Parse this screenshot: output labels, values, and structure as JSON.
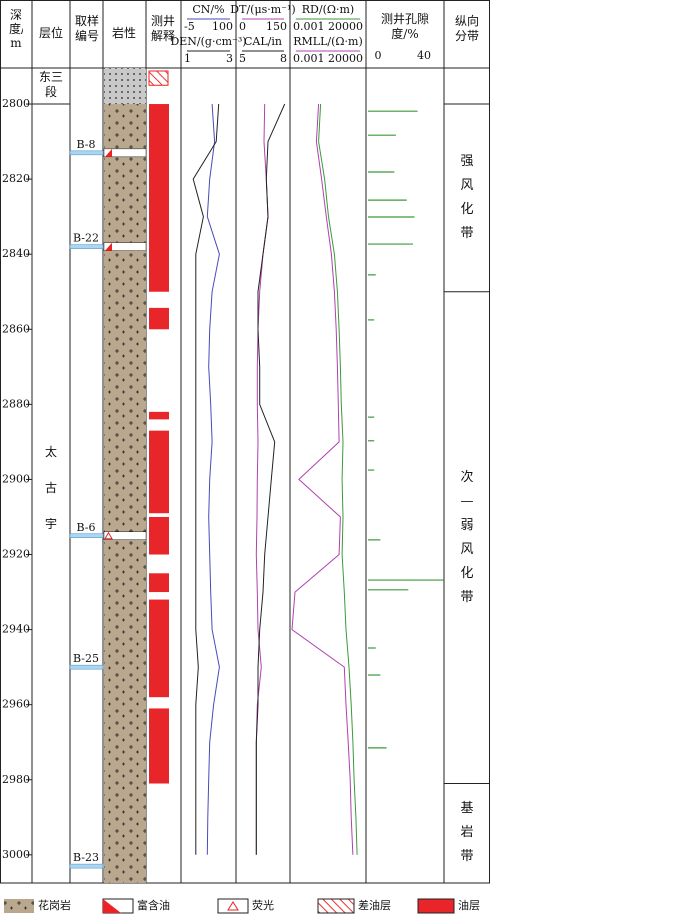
{
  "header": {
    "depth": "深度/m",
    "formation": "层位",
    "sample": "取样编号",
    "lithology": "岩性",
    "interpretation": "测井解释",
    "porosity": "测井孔隙度/%",
    "zone": "纵向分带"
  },
  "depth_axis": {
    "lim": [
      2790.4,
      3007.5
    ],
    "ticks": [
      2800,
      2820,
      2840,
      2860,
      2880,
      2900,
      2920,
      2940,
      2960,
      2980,
      3000
    ]
  },
  "formations": [
    {
      "name": "东三段",
      "top": 2790.4,
      "bottom": 2800
    },
    {
      "name": "太古宇",
      "top": 2800,
      "bottom": 3007.5
    }
  ],
  "lithology": {
    "top": 2790.4,
    "granite_top": 2800,
    "bottom": 3007.5
  },
  "samples": [
    {
      "label": "B-8",
      "depth": 2813,
      "show": "rich_oil"
    },
    {
      "label": "B-22",
      "depth": 2838,
      "show": "rich_oil"
    },
    {
      "label": "B-6",
      "depth": 2915,
      "show": "fluorescence"
    },
    {
      "label": "B-25",
      "depth": 2950
    },
    {
      "label": "B-23",
      "depth": 3003
    }
  ],
  "interpretation": {
    "poor_oil": [
      [
        2791.2,
        2795
      ]
    ],
    "oil": [
      [
        2800,
        2850
      ],
      [
        2854.3,
        2860
      ],
      [
        2882,
        2884
      ],
      [
        2887,
        2909
      ],
      [
        2910,
        2920
      ],
      [
        2925,
        2930
      ],
      [
        2932,
        2958
      ],
      [
        2961,
        2981
      ]
    ]
  },
  "tracks": [
    {
      "curves": [
        {
          "name": "CN/%",
          "color": "#4a4ab8",
          "scale": [
            -5,
            100
          ],
          "values": [
            55,
            60,
            50,
            45,
            70,
            55,
            50,
            48,
            52,
            55,
            50,
            48,
            50,
            52,
            55,
            70,
            58,
            50,
            48,
            46,
            45
          ]
        },
        {
          "name": "DEN/(g·cm⁻³)",
          "color": "#222222",
          "scale": [
            1,
            3
          ],
          "values": [
            2.4,
            2.3,
            1.4,
            1.8,
            1.5,
            1.5,
            1.5,
            1.5,
            1.5,
            1.5,
            1.5,
            1.5,
            1.5,
            1.5,
            1.5,
            1.6,
            1.5,
            1.5,
            1.5,
            1.5,
            1.5
          ]
        }
      ]
    },
    {
      "curves": [
        {
          "name": "DT/(μs·m⁻¹)",
          "color": "#b040b0",
          "scale": [
            0,
            150
          ],
          "values": [
            80,
            78,
            85,
            90,
            75,
            65,
            60,
            58,
            58,
            60,
            58,
            57,
            55,
            58,
            60,
            70,
            58,
            55,
            55,
            55,
            55
          ]
        },
        {
          "name": "CAL/in",
          "color": "#222222",
          "scale": [
            5,
            8
          ],
          "values": [
            7.8,
            6.8,
            6.7,
            6.8,
            6.5,
            6.2,
            6.2,
            6.3,
            6.3,
            7.2,
            7.0,
            6.8,
            6.6,
            6.5,
            6.3,
            6.2,
            6.2,
            6.1,
            6.1,
            6.1,
            6.1
          ]
        }
      ]
    },
    {
      "log": true,
      "curves": [
        {
          "name": "RD/(Ω·m)",
          "color": "#3a9a3a",
          "scale": [
            0.001,
            20000
          ],
          "values": [
            0.8,
            0.5,
            2,
            5,
            20,
            40,
            60,
            80,
            100,
            150,
            120,
            150,
            120,
            200,
            300,
            600,
            1000,
            1500,
            2000,
            3000,
            4000
          ]
        },
        {
          "name": "RMLL/(Ω·m)",
          "color": "#b040b0",
          "scale": [
            0.001,
            20000
          ],
          "values": [
            0.5,
            0.3,
            1,
            3,
            10,
            20,
            30,
            40,
            50,
            60,
            0.005,
            80,
            60,
            0.002,
            0.001,
            200,
            300,
            500,
            800,
            1000,
            1500
          ]
        }
      ]
    }
  ],
  "curve_depths": [
    2800,
    2810,
    2820,
    2830,
    2840,
    2850,
    2860,
    2870,
    2880,
    2890,
    2900,
    2910,
    2920,
    2930,
    2940,
    2950,
    2960,
    2970,
    2980,
    2990,
    3000
  ],
  "porosity": {
    "lim": [
      0,
      40
    ],
    "depths": [
      2801.9,
      2808.3,
      2818.1,
      2825.6,
      2830.1,
      2837.3,
      2845.5,
      2857.5,
      2883.4,
      2889.7,
      2897.5,
      2916.1,
      2926.8,
      2929.4,
      2944.9,
      2952.1,
      2971.5
    ],
    "values": [
      32,
      18,
      17,
      25,
      30,
      29,
      5,
      4,
      4,
      4,
      4,
      8,
      49,
      26,
      5,
      8,
      12
    ],
    "color": "#3a9a3a"
  },
  "zones": [
    {
      "name": "强风化带",
      "top": 2800,
      "bottom": 2850
    },
    {
      "name": "次—弱风化带",
      "top": 2850,
      "bottom": 2981
    },
    {
      "name": "基岩带",
      "top": 2981,
      "bottom": 3007.5
    }
  ],
  "legend": [
    "花岗岩",
    "富含油",
    "荧光",
    "差油层",
    "油层"
  ]
}
